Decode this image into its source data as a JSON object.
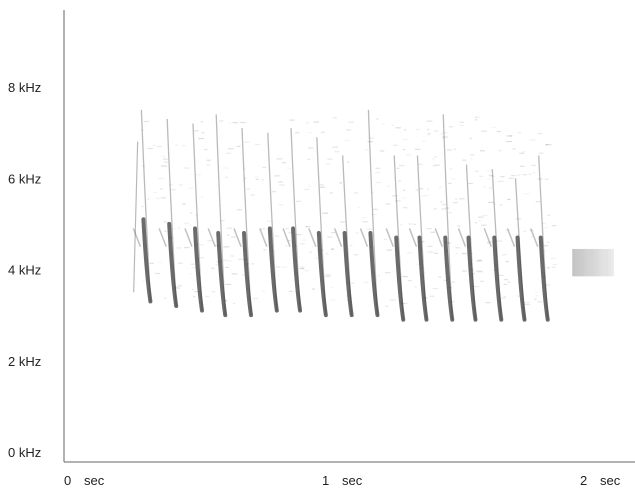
{
  "chart_data": {
    "type": "spectrogram",
    "title": "",
    "xlabel": "",
    "ylabel": "",
    "x_unit": "sec",
    "y_unit": "kHz",
    "xlim": [
      0,
      2.2
    ],
    "ylim": [
      0,
      9.5
    ],
    "x_ticks": [
      {
        "value": 0,
        "label": "0",
        "unit": "sec"
      },
      {
        "value": 1,
        "label": "1",
        "unit": "sec"
      },
      {
        "value": 2,
        "label": "2",
        "unit": "sec"
      }
    ],
    "y_ticks": [
      {
        "value": 0,
        "label": "0 kHz"
      },
      {
        "value": 2,
        "label": "2 kHz"
      },
      {
        "value": 4,
        "label": "4 kHz"
      },
      {
        "value": 6,
        "label": "6 kHz"
      },
      {
        "value": 8,
        "label": "8 kHz"
      }
    ],
    "grid": false,
    "colors": {
      "ink": "#3a3a3a",
      "axis": "#666666",
      "text": "#222222"
    },
    "sweeps": [
      {
        "t": 0.3,
        "f_high": 7.5,
        "f_low": 3.3
      },
      {
        "t": 0.4,
        "f_high": 7.3,
        "f_low": 3.2
      },
      {
        "t": 0.5,
        "f_high": 7.2,
        "f_low": 3.1
      },
      {
        "t": 0.59,
        "f_high": 7.4,
        "f_low": 3.0
      },
      {
        "t": 0.69,
        "f_high": 7.1,
        "f_low": 3.0
      },
      {
        "t": 0.79,
        "f_high": 7.0,
        "f_low": 3.1
      },
      {
        "t": 0.88,
        "f_high": 7.1,
        "f_low": 3.1
      },
      {
        "t": 0.98,
        "f_high": 6.9,
        "f_low": 3.0
      },
      {
        "t": 1.08,
        "f_high": 6.5,
        "f_low": 3.0
      },
      {
        "t": 1.18,
        "f_high": 7.5,
        "f_low": 3.0
      },
      {
        "t": 1.28,
        "f_high": 6.5,
        "f_low": 2.9
      },
      {
        "t": 1.37,
        "f_high": 6.5,
        "f_low": 2.9
      },
      {
        "t": 1.47,
        "f_high": 7.4,
        "f_low": 2.9
      },
      {
        "t": 1.56,
        "f_high": 6.3,
        "f_low": 2.9
      },
      {
        "t": 1.66,
        "f_high": 6.2,
        "f_low": 2.9
      },
      {
        "t": 1.75,
        "f_high": 6.0,
        "f_low": 2.9
      },
      {
        "t": 1.84,
        "f_high": 6.5,
        "f_low": 2.9
      }
    ],
    "onset": {
      "t": 0.27,
      "f_high": 6.8,
      "f_low": 3.5
    },
    "tail": {
      "t_start": 1.97,
      "t_end": 2.12,
      "f": 4.2
    }
  }
}
